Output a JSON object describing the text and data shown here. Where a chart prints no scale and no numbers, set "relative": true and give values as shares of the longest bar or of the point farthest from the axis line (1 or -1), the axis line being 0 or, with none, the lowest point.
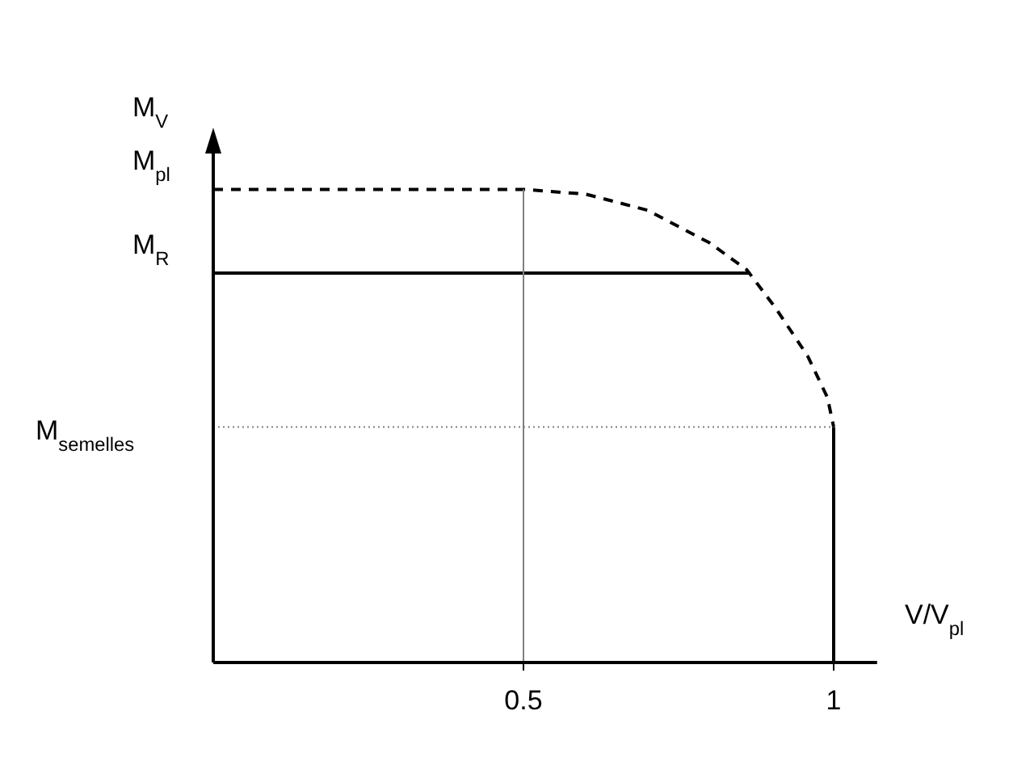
{
  "chart_data": {
    "type": "line",
    "relative": true,
    "xlabel": "V/V$_{pl}$",
    "ylabel": "M$_{V}$",
    "xlim": [
      0,
      1.07
    ],
    "xticks": [
      0.5,
      1
    ],
    "series": [
      {
        "color": "#000000",
        "line_style": "dashed",
        "x": [
          0,
          0.5,
          0.6,
          0.7,
          0.8,
          0.86,
          0.906,
          0.958,
          0.99,
          1
        ],
        "values": [
          1,
          1,
          0.99,
          0.956,
          0.887,
          0.83,
          0.75,
          0.648,
          0.56,
          0.498
        ]
      },
      {
        "color": "#000000",
        "line_style": "solid",
        "x": [
          0,
          0.865
        ],
        "values": [
          0.823,
          0.823
        ]
      },
      {
        "color": "#000000",
        "line_style": "solid",
        "x": [
          1,
          1
        ],
        "values": [
          0.498,
          0
        ]
      },
      {
        "color": "#808080",
        "line_style": "solid",
        "x": [
          0.5,
          0.5
        ],
        "values": [
          0,
          1
        ]
      }
    ],
    "ref_lines": [
      {
        "axis": "y",
        "value": 0.498,
        "label": "M$_{semelles}$",
        "color": "#808080",
        "line_style": "dotted"
      }
    ],
    "annotations": [
      {
        "text": "M$_{pl}$",
        "x": 0,
        "y": 1
      },
      {
        "text": "M$_{R}$",
        "x": 0,
        "y": 0.823
      }
    ],
    "grid": false
  }
}
